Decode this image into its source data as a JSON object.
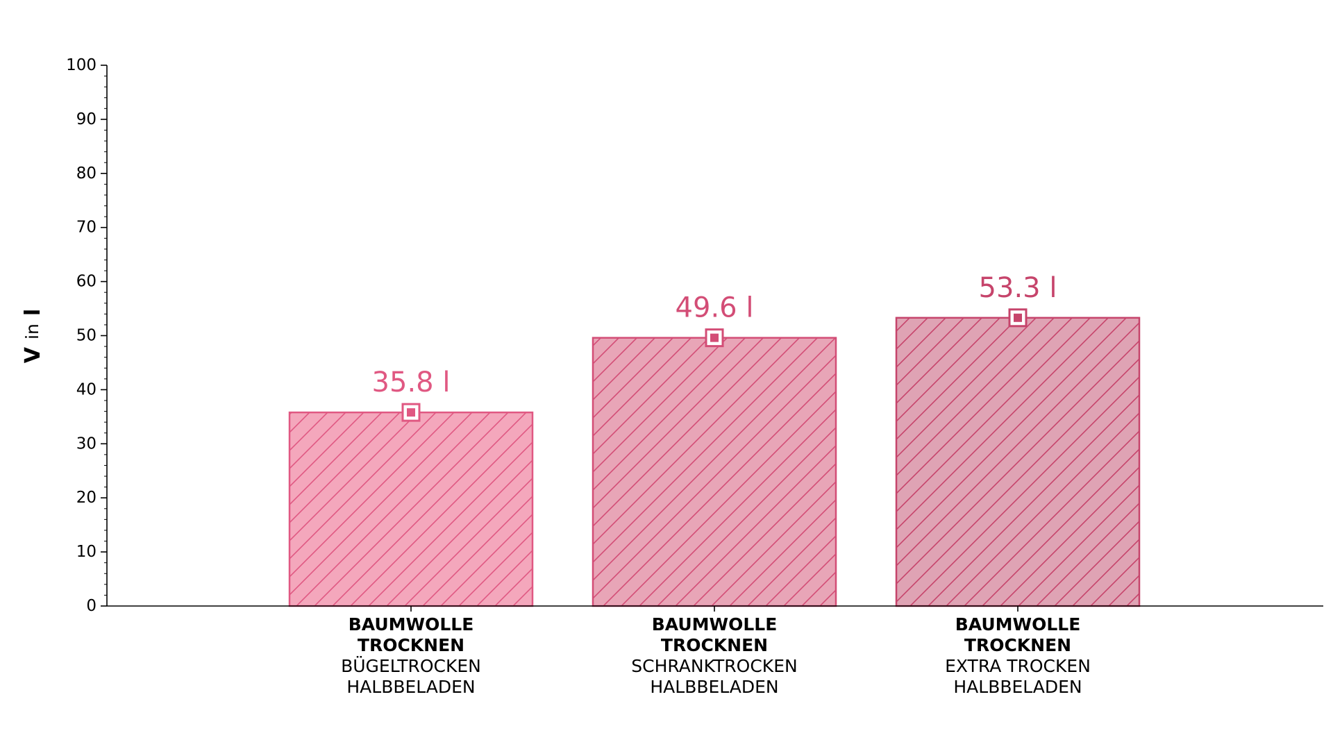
{
  "chart_data": {
    "type": "bar",
    "categories": [
      {
        "bold": [
          "BAUMWOLLE",
          "TROCKNEN"
        ],
        "normal": [
          "BÜGELTROCKEN",
          "HALBBELADEN"
        ]
      },
      {
        "bold": [
          "BAUMWOLLE",
          "TROCKNEN"
        ],
        "normal": [
          "SCHRANKTROCKEN",
          "HALBBELADEN"
        ]
      },
      {
        "bold": [
          "BAUMWOLLE",
          "TROCKNEN"
        ],
        "normal": [
          "EXTRA TROCKEN",
          "HALBBELADEN"
        ]
      }
    ],
    "values": [
      35.8,
      49.6,
      53.3
    ],
    "value_labels": [
      "35.8 l",
      "49.6 l",
      "53.3 l"
    ],
    "ylabel": {
      "symbol": "V",
      "connector": "in",
      "unit": "l"
    },
    "ylim": [
      0,
      100
    ],
    "yticks": [
      0,
      10,
      20,
      30,
      40,
      50,
      60,
      70,
      80,
      90,
      100
    ],
    "grid": false,
    "bar_fill_colors": [
      "#f4a7bc",
      "#e8a5b7",
      "#dfa3b4"
    ],
    "bar_edge_colors": [
      "#e05882",
      "#d34d76",
      "#c6446b"
    ],
    "hatch": "diagonal"
  }
}
